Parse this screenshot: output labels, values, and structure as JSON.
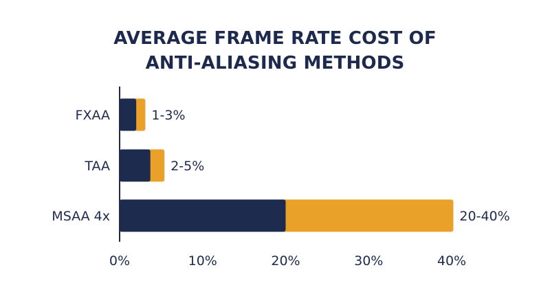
{
  "chart_data": {
    "type": "bar",
    "orientation": "horizontal",
    "stacked": true,
    "title": [
      "AVERAGE FRAME RATE COST OF",
      "ANTI-ALIASING METHODS"
    ],
    "categories": [
      "FXAA",
      "TAA",
      "MSAA 4x"
    ],
    "range_labels": [
      "1-3%",
      "2-5%",
      "20-40%"
    ],
    "series": [
      {
        "values": [
          2,
          3.7,
          20
        ],
        "color": "#1d2b4f"
      },
      {
        "values": [
          1.1,
          1.7,
          20.2
        ],
        "color": "#e9a12a"
      }
    ],
    "xticks": [
      "0%",
      "10%",
      "20%",
      "30%",
      "40%"
    ],
    "xlim": [
      0,
      40
    ],
    "grid": false,
    "axis_color": "#1d2a4d"
  }
}
